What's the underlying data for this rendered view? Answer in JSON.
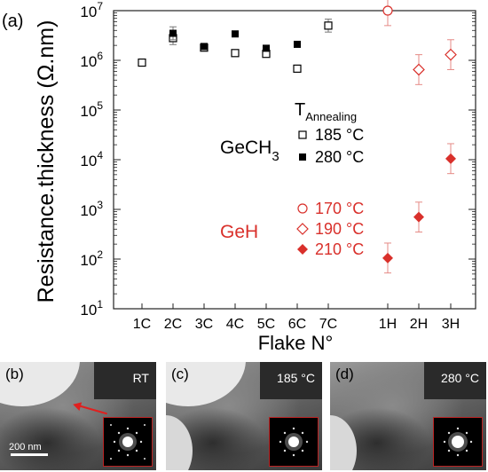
{
  "panel_a_label": "(a)",
  "chart_data": {
    "type": "scatter",
    "ylabel": "Resistance.thickness (Ω.nm)",
    "xlabel": "Flake N°",
    "yscale": "log",
    "ylim": [
      10,
      10000000
    ],
    "categories": [
      "1C",
      "2C",
      "3C",
      "4C",
      "5C",
      "6C",
      "7C",
      "1H",
      "2H",
      "3H"
    ],
    "y_tick_labels": [
      {
        "base": "10",
        "exp": "1"
      },
      {
        "base": "10",
        "exp": "2"
      },
      {
        "base": "10",
        "exp": "3"
      },
      {
        "base": "10",
        "exp": "4"
      },
      {
        "base": "10",
        "exp": "5"
      },
      {
        "base": "10",
        "exp": "6"
      },
      {
        "base": "10",
        "exp": "7"
      }
    ],
    "series": [
      {
        "name": "185 °C",
        "group": "GeCH3",
        "marker": "square-open",
        "color": "#000000",
        "points": [
          [
            "1C",
            900000
          ],
          [
            "2C",
            2800000
          ],
          [
            "3C",
            1800000
          ],
          [
            "4C",
            1400000
          ],
          [
            "5C",
            1350000
          ],
          [
            "6C",
            680000
          ],
          [
            "7C",
            5000000
          ]
        ]
      },
      {
        "name": "280 °C",
        "group": "GeCH3",
        "marker": "square-filled",
        "color": "#000000",
        "points": [
          [
            "2C",
            3500000
          ],
          [
            "3C",
            1900000
          ],
          [
            "4C",
            3400000
          ],
          [
            "5C",
            1750000
          ],
          [
            "6C",
            2100000
          ]
        ]
      },
      {
        "name": "170 °C",
        "group": "GeH",
        "marker": "circle-open",
        "color": "#d9302b",
        "points": [
          [
            "1H",
            10000000
          ]
        ]
      },
      {
        "name": "190 °C",
        "group": "GeH",
        "marker": "diamond-open",
        "color": "#d9302b",
        "points": [
          [
            "2H",
            650000
          ],
          [
            "3H",
            1300000
          ]
        ]
      },
      {
        "name": "210 °C",
        "group": "GeH",
        "marker": "diamond-filled",
        "color": "#d9302b",
        "points": [
          [
            "1H",
            105
          ],
          [
            "2H",
            700
          ],
          [
            "3H",
            10500
          ]
        ]
      }
    ],
    "legend": {
      "title_main": "T",
      "title_sub": "Annealing",
      "group1": {
        "text": "GeCH",
        "sub": "3",
        "color": "#000000"
      },
      "group2": {
        "text": "GeH",
        "color": "#d9302b"
      }
    }
  },
  "tem_panels": [
    {
      "letter": "(b)",
      "temp": "RT",
      "scale": "200 nm"
    },
    {
      "letter": "(c)",
      "temp": "185 °C"
    },
    {
      "letter": "(d)",
      "temp": "280 °C"
    }
  ]
}
